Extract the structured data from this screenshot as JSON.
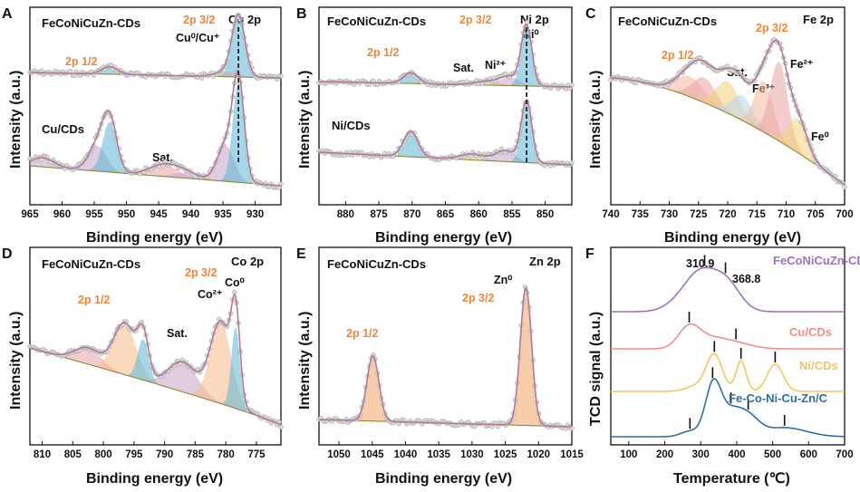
{
  "chart_data": [
    {
      "panel": "A",
      "type": "line",
      "subtype": "XPS spectrum",
      "title": "Cu 2p",
      "xlabel": "Binding energy (eV)",
      "ylabel": "Intensity (a.u.)",
      "xlim": [
        965,
        926
      ],
      "x_ticks": [
        965,
        960,
        955,
        950,
        945,
        940,
        935,
        930
      ],
      "traces": [
        {
          "name": "FeCoNiCuZn-CDs",
          "peaks": [
            {
              "center": 952.6,
              "height": 0.12,
              "width": 1.2,
              "color": "#5bb7d6"
            },
            {
              "center": 932.6,
              "height": 0.95,
              "width": 1.0,
              "color": "#5bb7d6"
            },
            {
              "center": 934.5,
              "height": 0.08,
              "width": 1.6,
              "color": "#c9a3c9"
            }
          ]
        },
        {
          "name": "Cu/CDs",
          "peaks": [
            {
              "center": 963.0,
              "height": 0.1,
              "width": 1.8,
              "color": "#c9a3c9"
            },
            {
              "center": 954.5,
              "height": 0.28,
              "width": 1.4,
              "color": "#c9a3c9"
            },
            {
              "center": 952.6,
              "height": 0.55,
              "width": 1.1,
              "color": "#5bb7d6"
            },
            {
              "center": 944.2,
              "height": 0.13,
              "width": 2.2,
              "color": "#e9a4a4"
            },
            {
              "center": 940.8,
              "height": 0.06,
              "width": 1.8,
              "color": "#c9a3c9"
            },
            {
              "center": 934.6,
              "height": 0.4,
              "width": 1.3,
              "color": "#c9a3c9"
            },
            {
              "center": 932.6,
              "height": 1.1,
              "width": 0.9,
              "color": "#5bb7d6"
            }
          ]
        }
      ],
      "annotations": [
        "FeCoNiCuZn-CDs",
        "Cu/CDs",
        "2p 1/2",
        "2p 3/2",
        "Cu⁰/Cu⁺",
        "Sat."
      ],
      "marker_positions": [
        932.6
      ]
    },
    {
      "panel": "B",
      "type": "line",
      "subtype": "XPS spectrum",
      "title": "Ni 2p",
      "xlabel": "Binding energy (eV)",
      "ylabel": "Intensity (a.u.)",
      "xlim": [
        884,
        846
      ],
      "x_ticks": [
        880,
        875,
        870,
        865,
        860,
        855,
        850
      ],
      "traces": [
        {
          "name": "FeCoNiCuZn-CDs",
          "peaks": [
            {
              "center": 870.2,
              "height": 0.17,
              "width": 1.1,
              "color": "#5bb7d6"
            },
            {
              "center": 858.8,
              "height": 0.06,
              "width": 1.8,
              "color": "#f3d27c"
            },
            {
              "center": 855.4,
              "height": 0.14,
              "width": 1.4,
              "color": "#c9a3c9"
            },
            {
              "center": 852.8,
              "height": 0.95,
              "width": 0.8,
              "color": "#5bb7d6"
            }
          ]
        },
        {
          "name": "Ni/CDs",
          "peaks": [
            {
              "center": 870.2,
              "height": 0.35,
              "width": 1.1,
              "color": "#5bb7d6"
            },
            {
              "center": 861.0,
              "height": 0.08,
              "width": 1.8,
              "color": "#f3d27c"
            },
            {
              "center": 856.0,
              "height": 0.15,
              "width": 1.5,
              "color": "#c9a3c9"
            },
            {
              "center": 852.8,
              "height": 0.85,
              "width": 0.8,
              "color": "#5bb7d6"
            }
          ]
        }
      ],
      "annotations": [
        "FeCoNiCuZn-CDs",
        "Ni/CDs",
        "2p 1/2",
        "2p 3/2",
        "Sat.",
        "Ni²⁺",
        "Ni⁰"
      ],
      "marker_positions": [
        852.8
      ]
    },
    {
      "panel": "C",
      "type": "line",
      "subtype": "XPS spectrum",
      "title": "Fe 2p",
      "xlabel": "Binding energy (eV)",
      "ylabel": "Intensity (a.u.)",
      "xlim": [
        740,
        700
      ],
      "x_ticks": [
        740,
        735,
        730,
        725,
        720,
        715,
        710,
        705,
        700
      ],
      "traces": [
        {
          "name": "FeCoNiCuZn-CDs",
          "peaks": [
            {
              "center": 726.5,
              "height": 0.18,
              "width": 2.4,
              "color": "#f2b8a0"
            },
            {
              "center": 724.0,
              "height": 0.22,
              "width": 2.0,
              "color": "#e9a4a4"
            },
            {
              "center": 720.0,
              "height": 0.28,
              "width": 2.0,
              "color": "#f3d27c"
            },
            {
              "center": 717.5,
              "height": 0.22,
              "width": 1.8,
              "color": "#bcd6ef"
            },
            {
              "center": 713.8,
              "height": 0.45,
              "width": 1.6,
              "color": "#f2b8a0"
            },
            {
              "center": 711.2,
              "height": 0.7,
              "width": 1.5,
              "color": "#e9a4a4"
            },
            {
              "center": 708.0,
              "height": 0.3,
              "width": 1.6,
              "color": "#f3d27c"
            }
          ]
        }
      ],
      "annotations": [
        "FeCoNiCuZn-CDs",
        "2p 1/2",
        "2p 3/2",
        "Sat.",
        "Fe³⁺",
        "Fe²⁺",
        "Fe⁰"
      ],
      "marker_positions": []
    },
    {
      "panel": "D",
      "type": "line",
      "subtype": "XPS spectrum",
      "title": "Co 2p",
      "xlabel": "Binding energy (eV)",
      "ylabel": "Intensity (a.u.)",
      "xlim": [
        812,
        771
      ],
      "x_ticks": [
        810,
        805,
        800,
        795,
        790,
        785,
        780,
        775
      ],
      "traces": [
        {
          "name": "FeCoNiCuZn-CDs",
          "peaks": [
            {
              "center": 802.5,
              "height": 0.12,
              "width": 2.2,
              "color": "#e9a4a4"
            },
            {
              "center": 796.5,
              "height": 0.38,
              "width": 1.8,
              "color": "#f7b98a"
            },
            {
              "center": 793.5,
              "height": 0.3,
              "width": 0.9,
              "color": "#5bb7d6"
            },
            {
              "center": 787.0,
              "height": 0.22,
              "width": 2.4,
              "color": "#c9a3c9"
            },
            {
              "center": 780.8,
              "height": 0.6,
              "width": 1.7,
              "color": "#f7b98a"
            },
            {
              "center": 778.4,
              "height": 0.6,
              "width": 0.7,
              "color": "#5bb7d6"
            }
          ]
        }
      ],
      "annotations": [
        "FeCoNiCuZn-CDs",
        "2p 1/2",
        "2p 3/2",
        "Sat.",
        "Co²⁺",
        "Co⁰"
      ],
      "marker_positions": []
    },
    {
      "panel": "E",
      "type": "line",
      "subtype": "XPS spectrum",
      "title": "Zn 2p",
      "xlabel": "Binding energy (eV)",
      "ylabel": "Intensity (a.u.)",
      "xlim": [
        1053,
        1015
      ],
      "x_ticks": [
        1050,
        1045,
        1040,
        1035,
        1030,
        1025,
        1020,
        1015
      ],
      "traces": [
        {
          "name": "FeCoNiCuZn-CDs",
          "peaks": [
            {
              "center": 1044.9,
              "height": 0.45,
              "width": 0.9,
              "color": "#f0a468"
            },
            {
              "center": 1021.9,
              "height": 0.95,
              "width": 0.85,
              "color": "#f0a468"
            }
          ]
        }
      ],
      "annotations": [
        "FeCoNiCuZn-CDs",
        "2p 1/2",
        "2p 3/2",
        "Zn⁰"
      ],
      "marker_positions": []
    },
    {
      "panel": "F",
      "type": "line",
      "subtype": "H2-TPR",
      "title": "",
      "xlabel": "Temperature (℃)",
      "ylabel": "TCD signal (a.u.)",
      "xlim": [
        50,
        700
      ],
      "x_ticks": [
        100,
        200,
        300,
        400,
        500,
        600,
        700
      ],
      "series": [
        {
          "name": "FeCoNiCuZn-CDs",
          "color": "#9b72c7",
          "peaks_C": [
            310.9,
            368.8
          ]
        },
        {
          "name": "Cu/CDs",
          "color": "#ef8f8a",
          "peaks_C": [
            268,
            398
          ]
        },
        {
          "name": "Ni/CDs",
          "color": "#f6c562",
          "peaks_C": [
            338,
            412,
            507
          ]
        },
        {
          "name": "Fe-Co-Ni-Cu-Zn/C",
          "color": "#2f6ea6",
          "peaks_C": [
            270,
            333,
            384,
            432,
            533
          ]
        }
      ],
      "data_labels": [
        "310.9",
        "368.8"
      ]
    }
  ],
  "panels": {
    "A": {
      "letter": "A",
      "sample_top": "FeCoNiCuZn-CDs",
      "sample_bottom": "Cu/CDs",
      "element": "Cu 2p",
      "lbl_half": "2p 1/2",
      "lbl_threehalf": "2p 3/2",
      "lbl_state": "Cu⁰/Cu⁺",
      "lbl_sat": "Sat."
    },
    "B": {
      "letter": "B",
      "sample_top": "FeCoNiCuZn-CDs",
      "sample_bottom": "Ni/CDs",
      "element": "Ni 2p",
      "lbl_half": "2p 1/2",
      "lbl_threehalf": "2p 3/2",
      "lbl_sat": "Sat.",
      "lbl_ni2": "Ni²⁺",
      "lbl_ni0": "Ni⁰"
    },
    "C": {
      "letter": "C",
      "sample_top": "FeCoNiCuZn-CDs",
      "element": "Fe 2p",
      "lbl_half": "2p 1/2",
      "lbl_threehalf": "2p 3/2",
      "lbl_sat": "Sat.",
      "lbl_fe3": "Fe³⁺",
      "lbl_fe2": "Fe²⁺",
      "lbl_fe0": "Fe⁰"
    },
    "D": {
      "letter": "D",
      "sample_top": "FeCoNiCuZn-CDs",
      "element": "Co 2p",
      "lbl_half": "2p 1/2",
      "lbl_threehalf": "2p 3/2",
      "lbl_sat": "Sat.",
      "lbl_co2": "Co²⁺",
      "lbl_co0": "Co⁰"
    },
    "E": {
      "letter": "E",
      "sample_top": "FeCoNiCuZn-CDs",
      "element": "Zn 2p",
      "lbl_half": "2p 1/2",
      "lbl_threehalf": "2p 3/2",
      "lbl_zn0": "Zn⁰"
    },
    "F": {
      "letter": "F",
      "lbl_p1": "310.9",
      "lbl_p2": "368.8"
    }
  },
  "axis_text": {
    "xps_x": "Binding energy (eV)",
    "xps_y": "Intensity (a.u.)",
    "tpr_x": "Temperature (℃)",
    "tpr_y": "TCD signal (a.u.)"
  },
  "colors": {
    "orange_label": "#f0853a",
    "envelope": "#b07a9a",
    "baseline": "#8a8a3a"
  }
}
